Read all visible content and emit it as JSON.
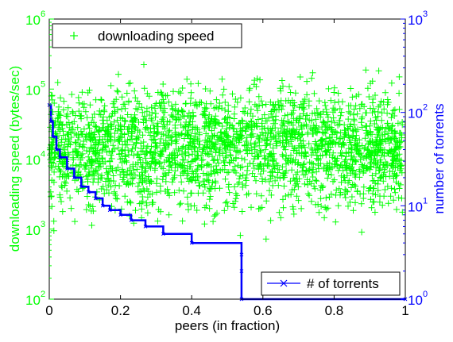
{
  "chart_data": {
    "type": "scatter",
    "title": "",
    "xlabel": "peers (in fraction)",
    "ylabel_left": "downloading speed (bytes/sec)",
    "ylabel_right": "number of torrents",
    "xlim": [
      0,
      1
    ],
    "ylim_left": [
      100,
      1000000
    ],
    "ylim_right": [
      1,
      1000
    ],
    "yscale_left": "log",
    "yscale_right": "log",
    "grid": false,
    "x_ticks": [
      "0",
      "0.2",
      "0.4",
      "0.6",
      "0.8",
      "1"
    ],
    "y_left_ticks": [
      {
        "base": "10",
        "exp": "2"
      },
      {
        "base": "10",
        "exp": "3"
      },
      {
        "base": "10",
        "exp": "4"
      },
      {
        "base": "10",
        "exp": "5"
      },
      {
        "base": "10",
        "exp": "6"
      }
    ],
    "y_right_ticks": [
      {
        "base": "10",
        "exp": "0"
      },
      {
        "base": "10",
        "exp": "1"
      },
      {
        "base": "10",
        "exp": "2"
      },
      {
        "base": "10",
        "exp": "3"
      }
    ],
    "colors": {
      "speed": "#00ff00",
      "torrents": "#0000ff",
      "axes": "#000000"
    },
    "series": [
      {
        "name": "downloading speed",
        "axis": "left",
        "marker": "+",
        "note_count": 2500,
        "distribution": {
          "median": 15000,
          "spread_decades": 0.55,
          "min": 150,
          "max": 400000
        }
      },
      {
        "name": "# of torrents",
        "axis": "right",
        "marker": "x",
        "curve": [
          [
            0.0,
            120
          ],
          [
            0.005,
            80
          ],
          [
            0.01,
            55
          ],
          [
            0.02,
            40
          ],
          [
            0.03,
            33
          ],
          [
            0.05,
            25
          ],
          [
            0.07,
            20
          ],
          [
            0.09,
            16
          ],
          [
            0.11,
            14
          ],
          [
            0.13,
            12
          ],
          [
            0.15,
            10
          ],
          [
            0.17,
            9
          ],
          [
            0.2,
            8
          ],
          [
            0.23,
            7
          ],
          [
            0.27,
            6
          ],
          [
            0.32,
            5
          ],
          [
            0.4,
            4
          ],
          [
            0.54,
            3
          ],
          [
            0.54,
            2
          ],
          [
            0.54,
            1
          ],
          [
            1.0,
            1
          ]
        ]
      }
    ],
    "legend": {
      "speed": {
        "label": "downloading speed",
        "placement": "top-left"
      },
      "torrents": {
        "label": "# of torrents",
        "placement": "bottom-right"
      }
    }
  }
}
